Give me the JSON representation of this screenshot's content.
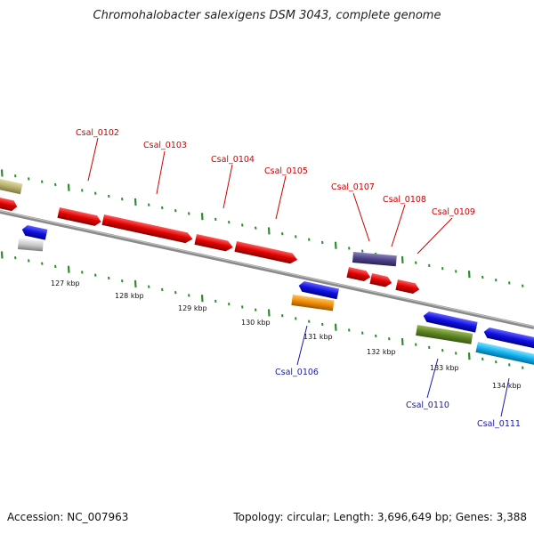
{
  "title": "Chromohalobacter salexigens DSM 3043, complete genome",
  "footer": {
    "accession": "Accession: NC_007963",
    "topology": "Topology: circular; Length: 3,696,649 bp; Genes: 3,388"
  },
  "colors": {
    "backbone": "#8c8c8c",
    "ticks": "#2e8b2e",
    "top_label": "#cc0000",
    "bottom_label": "#1a1aa6"
  },
  "scale_labels": [
    "127 kbp",
    "128 kbp",
    "129 kbp",
    "130 kbp",
    "131 kbp",
    "132 kbp",
    "133 kbp",
    "134 kbp"
  ],
  "top_genes": [
    "Csal_0102",
    "Csal_0103",
    "Csal_0104",
    "Csal_0105",
    "Csal_0107",
    "Csal_0108",
    "Csal_0109"
  ],
  "bottom_genes": [
    "Csal_0106",
    "Csal_0110",
    "Csal_0111"
  ],
  "feature_colors": [
    "#cc0000",
    "#1a1ad8",
    "#5a4a90",
    "#f0900a",
    "#6b8f2a",
    "#18b8f0",
    "#b8b070",
    "#c8c8c8"
  ]
}
